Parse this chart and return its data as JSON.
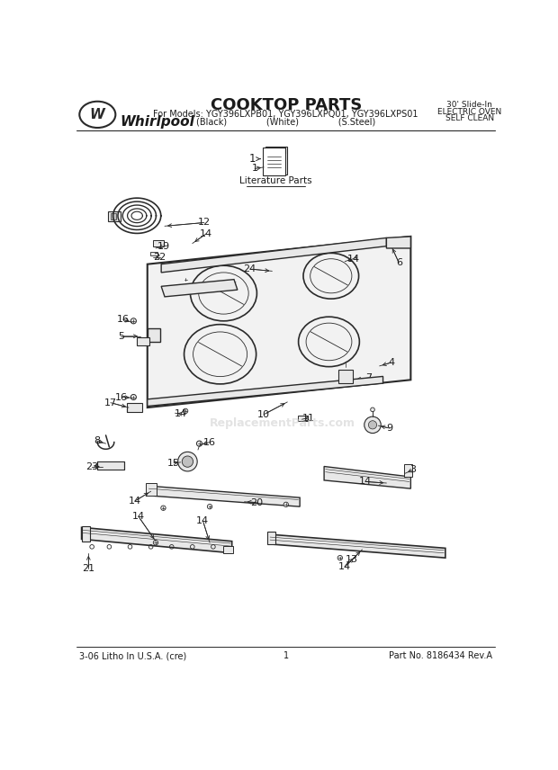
{
  "title": "COOKTOP PARTS",
  "subtitle_line1": "For Models: YGY396LXPB01, YGY396LXPQ01, YGY396LXPS01",
  "subtitle_line2": "(Black)              (White)              (S.Steel)",
  "top_right_line1": "30' Slide-In",
  "top_right_line2": "ELECTRIC OVEN",
  "top_right_line3": "SELF CLEAN",
  "brand": "Whirlpool",
  "bottom_left": "3-06 Litho In U.S.A. (cre)",
  "bottom_center": "1",
  "bottom_right": "Part No. 8186434 Rev.A",
  "watermark": "ReplacementParts.com",
  "lit_label": "Literature Parts",
  "bg_color": "#ffffff",
  "line_color": "#2a2a2a",
  "text_color": "#1a1a1a",
  "gray_fill": "#e8e8e8",
  "dark_gray": "#c0c0c0"
}
